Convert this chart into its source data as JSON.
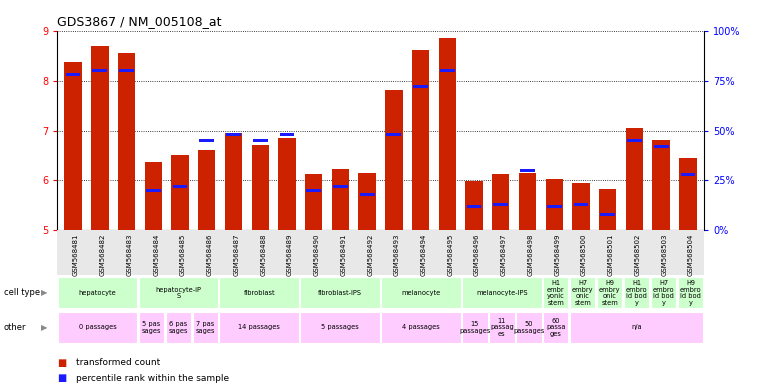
{
  "title": "GDS3867 / NM_005108_at",
  "samples": [
    "GSM568481",
    "GSM568482",
    "GSM568483",
    "GSM568484",
    "GSM568485",
    "GSM568486",
    "GSM568487",
    "GSM568488",
    "GSM568489",
    "GSM568490",
    "GSM568491",
    "GSM568492",
    "GSM568493",
    "GSM568494",
    "GSM568495",
    "GSM568496",
    "GSM568497",
    "GSM568498",
    "GSM568499",
    "GSM568500",
    "GSM568501",
    "GSM568502",
    "GSM568503",
    "GSM568504"
  ],
  "transformed_counts": [
    8.38,
    8.7,
    8.55,
    6.38,
    6.52,
    6.62,
    6.95,
    6.72,
    6.85,
    6.12,
    6.22,
    6.15,
    7.82,
    8.62,
    8.85,
    5.98,
    6.12,
    6.15,
    6.02,
    5.95,
    5.82,
    7.05,
    6.82,
    6.45
  ],
  "percentile_ranks": [
    78,
    80,
    80,
    20,
    22,
    45,
    48,
    45,
    48,
    20,
    22,
    18,
    48,
    72,
    80,
    12,
    13,
    30,
    12,
    13,
    8,
    45,
    42,
    28
  ],
  "ylim_left": [
    5,
    9
  ],
  "ylim_right": [
    0,
    100
  ],
  "yticks_left": [
    5,
    6,
    7,
    8,
    9
  ],
  "yticks_right": [
    0,
    25,
    50,
    75,
    100
  ],
  "ytick_labels_right": [
    "0%",
    "25%",
    "50%",
    "75%",
    "100%"
  ],
  "bar_color": "#cc2200",
  "blue_color": "#1a1aff",
  "bg_color": "#ffffff",
  "cell_type_groups": [
    {
      "label": "hepatocyte",
      "start": 0,
      "end": 3,
      "color": "#ccffcc"
    },
    {
      "label": "hepatocyte-iP\nS",
      "start": 3,
      "end": 6,
      "color": "#ccffcc"
    },
    {
      "label": "fibroblast",
      "start": 6,
      "end": 9,
      "color": "#ccffcc"
    },
    {
      "label": "fibroblast-IPS",
      "start": 9,
      "end": 12,
      "color": "#ccffcc"
    },
    {
      "label": "melanocyte",
      "start": 12,
      "end": 15,
      "color": "#ccffcc"
    },
    {
      "label": "melanocyte-IPS",
      "start": 15,
      "end": 18,
      "color": "#ccffcc"
    },
    {
      "label": "H1\nembr\nyonic\nstem",
      "start": 18,
      "end": 19,
      "color": "#ccffcc"
    },
    {
      "label": "H7\nembry\nonic\nstem",
      "start": 19,
      "end": 20,
      "color": "#ccffcc"
    },
    {
      "label": "H9\nembry\nonic\nstem",
      "start": 20,
      "end": 21,
      "color": "#ccffcc"
    },
    {
      "label": "H1\nembro\nid bod\ny",
      "start": 21,
      "end": 22,
      "color": "#ccffcc"
    },
    {
      "label": "H7\nembro\nid bod\ny",
      "start": 22,
      "end": 23,
      "color": "#ccffcc"
    },
    {
      "label": "H9\nembro\nid bod\ny",
      "start": 23,
      "end": 24,
      "color": "#ccffcc"
    }
  ],
  "other_groups": [
    {
      "label": "0 passages",
      "start": 0,
      "end": 3,
      "color": "#ffccff"
    },
    {
      "label": "5 pas\nsages",
      "start": 3,
      "end": 4,
      "color": "#ffccff"
    },
    {
      "label": "6 pas\nsages",
      "start": 4,
      "end": 5,
      "color": "#ffccff"
    },
    {
      "label": "7 pas\nsages",
      "start": 5,
      "end": 6,
      "color": "#ffccff"
    },
    {
      "label": "14 passages",
      "start": 6,
      "end": 9,
      "color": "#ffccff"
    },
    {
      "label": "5 passages",
      "start": 9,
      "end": 12,
      "color": "#ffccff"
    },
    {
      "label": "4 passages",
      "start": 12,
      "end": 15,
      "color": "#ffccff"
    },
    {
      "label": "15\npassages",
      "start": 15,
      "end": 16,
      "color": "#ffccff"
    },
    {
      "label": "11\npassag\nes",
      "start": 16,
      "end": 17,
      "color": "#ffccff"
    },
    {
      "label": "50\npassages",
      "start": 17,
      "end": 18,
      "color": "#ffccff"
    },
    {
      "label": "60\npassa\nges",
      "start": 18,
      "end": 19,
      "color": "#ffccff"
    },
    {
      "label": "n/a",
      "start": 19,
      "end": 24,
      "color": "#ffccff"
    }
  ],
  "legend_items": [
    {
      "color": "#cc2200",
      "label": "transformed count"
    },
    {
      "color": "#1a1aff",
      "label": "percentile rank within the sample"
    }
  ]
}
